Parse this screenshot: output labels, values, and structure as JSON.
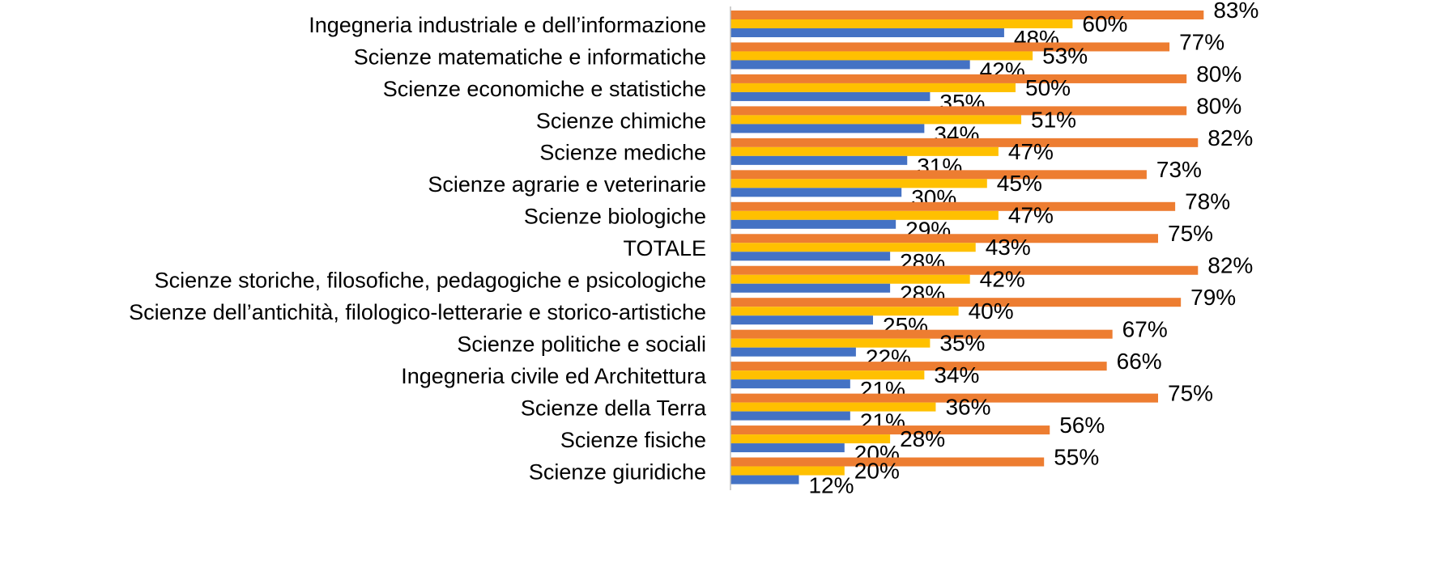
{
  "chart_data": {
    "type": "barh",
    "categories": [
      "Ingegneria industriale e dell’informazione",
      "Scienze matematiche e informatiche",
      "Scienze economiche e statistiche",
      "Scienze chimiche",
      "Scienze mediche",
      "Scienze agrarie e veterinarie",
      "Scienze biologiche",
      "TOTALE",
      "Scienze storiche, filosofiche, pedagogiche e psicologiche",
      "Scienze dell’antichità, filologico-letterarie e storico-artistiche",
      "Scienze politiche e sociali",
      "Ingegneria civile ed Architettura",
      "Scienze della Terra",
      "Scienze fisiche",
      "Scienze giuridiche"
    ],
    "series": [
      {
        "color": "#ED7D31",
        "values": [
          83,
          77,
          80,
          80,
          82,
          73,
          78,
          75,
          82,
          79,
          67,
          66,
          75,
          56,
          55
        ],
        "value_labels": [
          "83%",
          "77%",
          "80%",
          "80%",
          "82%",
          "73%",
          "78%",
          "75%",
          "82%",
          "79%",
          "67%",
          "66%",
          "75%",
          "56%",
          "55%"
        ]
      },
      {
        "color": "#FFC000",
        "values": [
          60,
          53,
          50,
          51,
          47,
          45,
          47,
          43,
          42,
          40,
          35,
          34,
          36,
          28,
          20
        ],
        "value_labels": [
          "60%",
          "53%",
          "50%",
          "51%",
          "47%",
          "45%",
          "47%",
          "43%",
          "42%",
          "40%",
          "35%",
          "34%",
          "36%",
          "28%",
          "20%"
        ]
      },
      {
        "color": "#4472C4",
        "values": [
          48,
          42,
          35,
          34,
          31,
          30,
          29,
          28,
          28,
          25,
          22,
          21,
          21,
          20,
          12
        ],
        "value_labels": [
          "48%",
          "42%",
          "35%",
          "34%",
          "31%",
          "30%",
          "29%",
          "28%",
          "28%",
          "25%",
          "22%",
          "21%",
          "21%",
          "20%",
          "12%"
        ]
      }
    ],
    "xlim": [
      0,
      100
    ]
  }
}
